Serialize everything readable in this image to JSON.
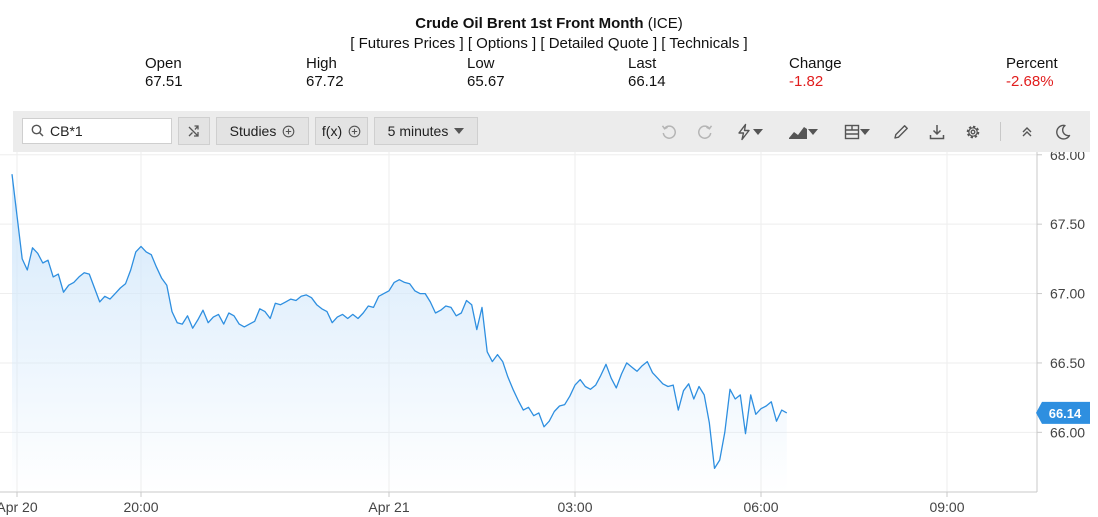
{
  "header": {
    "title_bold": "Crude Oil Brent 1st Front Month",
    "title_exchange": "(ICE)",
    "links": [
      "[ Futures Prices ]",
      "[ Options ]",
      "[ Detailed Quote ]",
      "[ Technicals ]"
    ]
  },
  "quote": {
    "open_label": "Open",
    "open": "67.51",
    "high_label": "High",
    "high": "67.72",
    "low_label": "Low",
    "low": "65.67",
    "last_label": "Last",
    "last": "66.14",
    "change_label": "Change",
    "change": "-1.82",
    "percent_label": "Percent",
    "percent": "-2.68%"
  },
  "toolbar": {
    "symbol": "CB*1",
    "studies_label": "Studies",
    "fx_label": "f(x)",
    "interval_label": "5 minutes",
    "icons": [
      "search-icon",
      "compare-icon",
      "plus-circle-icon",
      "undo-icon",
      "redo-icon",
      "lightning-icon",
      "chart-type-icon",
      "layout-icon",
      "pencil-icon",
      "download-icon",
      "gear-icon",
      "collapse-icon",
      "moon-icon"
    ]
  },
  "colors": {
    "line": "#2e8fe0",
    "fill_top": "#d3e8fb",
    "negative": "#e11d1d",
    "badge": "#2e8fe0"
  },
  "chart_data": {
    "type": "area",
    "y_axis_side": "right",
    "ylim": [
      65.57,
      68.02
    ],
    "y_ticks": [
      "68.00",
      "67.50",
      "67.00",
      "66.50",
      "66.00"
    ],
    "x_ticks": [
      "Apr 20",
      "20:00",
      "Apr 21",
      "03:00",
      "06:00",
      "09:00"
    ],
    "x_tick_times": [
      "2025-04-20 18:00",
      "2025-04-20 20:00",
      "2025-04-21 00:00",
      "2025-04-21 03:00",
      "2025-04-21 06:00",
      "2025-04-21 09:00"
    ],
    "last_label": "66.14",
    "series": [
      {
        "time_start": "2025-04-20 18:00",
        "interval_minutes": 5,
        "values": [
          67.86,
          67.25,
          67.17,
          67.33,
          67.29,
          67.22,
          67.24,
          67.12,
          67.14,
          67.01,
          67.06,
          67.08,
          67.12,
          67.15,
          67.14,
          67.04,
          66.94,
          66.98,
          66.96,
          67.0,
          67.04,
          67.07,
          67.17,
          67.3,
          67.34,
          67.3,
          67.28,
          67.19,
          67.11,
          67.06,
          66.87,
          66.79,
          66.78,
          66.84,
          66.75,
          66.81,
          66.88,
          66.79,
          66.83,
          66.85,
          66.78,
          66.86,
          66.84,
          66.78,
          66.76,
          66.78,
          66.8,
          66.89,
          66.87,
          66.82,
          66.93,
          66.92,
          66.94,
          66.96,
          66.95,
          66.98,
          66.99,
          66.97,
          66.92,
          66.89,
          66.87,
          66.79,
          66.83,
          66.85,
          66.82,
          66.85,
          66.82,
          66.86,
          66.91,
          66.9,
          66.98,
          67.0,
          67.02,
          67.08,
          67.1,
          67.08,
          67.07,
          67.02,
          67.0,
          67.0,
          66.94,
          66.86,
          66.88,
          66.91,
          66.9,
          66.84,
          66.86,
          66.95,
          66.92,
          66.74,
          66.9,
          66.58,
          66.51,
          66.56,
          66.51,
          66.4,
          66.31,
          66.23,
          66.16,
          66.18,
          66.12,
          66.14,
          66.04,
          66.08,
          66.15,
          66.19,
          66.2,
          66.26,
          66.34,
          66.38,
          66.33,
          66.31,
          66.34,
          66.41,
          66.49,
          66.39,
          66.32,
          66.42,
          66.5,
          66.47,
          66.44,
          66.48,
          66.51,
          66.43,
          66.39,
          66.35,
          66.33,
          66.34,
          66.16,
          66.3,
          66.35,
          66.24,
          66.33,
          66.27,
          66.07,
          65.74,
          65.8,
          66.0,
          66.31,
          66.24,
          66.27,
          65.99,
          66.27,
          66.13,
          66.17,
          66.19,
          66.22,
          66.08,
          66.16,
          66.14
        ]
      }
    ]
  }
}
